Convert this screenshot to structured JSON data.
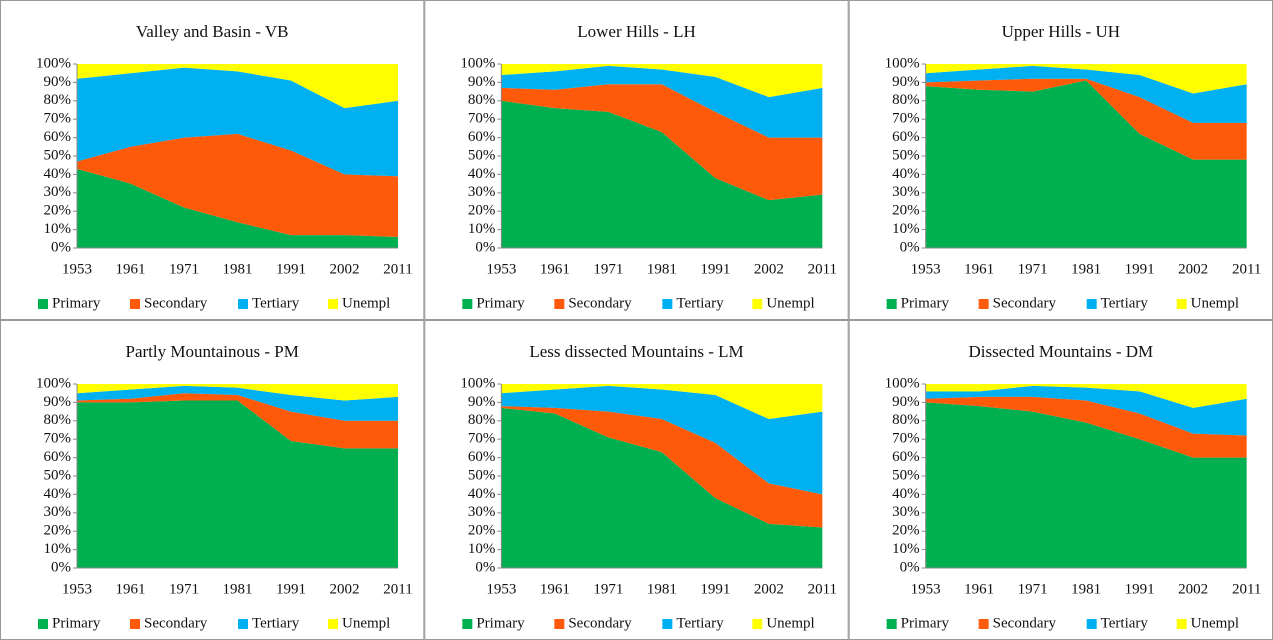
{
  "chart_data": [
    {
      "type": "area",
      "title": "Valley and Basin - VB",
      "categories": [
        "1953",
        "1961",
        "1971",
        "1981",
        "1991",
        "2002",
        "2011"
      ],
      "series": [
        {
          "name": "Primary",
          "color": "#00b050",
          "values": [
            43,
            35,
            22,
            14,
            7,
            7,
            6
          ]
        },
        {
          "name": "Secondary",
          "color": "#ff5a0a",
          "values": [
            4,
            20,
            38,
            48,
            46,
            33,
            33
          ]
        },
        {
          "name": "Tertiary",
          "color": "#00b0f0",
          "values": [
            45,
            40,
            38,
            34,
            38,
            36,
            41
          ]
        },
        {
          "name": "Unempl",
          "color": "#ffff00",
          "values": [
            8,
            5,
            2,
            4,
            9,
            24,
            20
          ]
        }
      ],
      "ylim": [
        0,
        100
      ],
      "yticks": [
        {
          "value": 0,
          "label": "0%"
        },
        {
          "value": 10,
          "label": "10%"
        },
        {
          "value": 20,
          "label": "20%"
        },
        {
          "value": 30,
          "label": "30%"
        },
        {
          "value": 40,
          "label": "40%"
        },
        {
          "value": 50,
          "label": "50%"
        },
        {
          "value": 60,
          "label": "60%"
        },
        {
          "value": 70,
          "label": "70%"
        },
        {
          "value": 80,
          "label": "80%"
        },
        {
          "value": 90,
          "label": "90%"
        },
        {
          "value": 100,
          "label": "100%"
        }
      ]
    },
    {
      "type": "area",
      "title": "Lower Hills - LH",
      "categories": [
        "1953",
        "1961",
        "1971",
        "1981",
        "1991",
        "2002",
        "2011"
      ],
      "series": [
        {
          "name": "Primary",
          "color": "#00b050",
          "values": [
            80,
            76,
            74,
            63,
            38,
            26,
            29
          ]
        },
        {
          "name": "Secondary",
          "color": "#ff5a0a",
          "values": [
            7,
            10,
            15,
            26,
            36,
            34,
            31
          ]
        },
        {
          "name": "Tertiary",
          "color": "#00b0f0",
          "values": [
            7,
            10,
            10,
            8,
            19,
            22,
            27
          ]
        },
        {
          "name": "Unempl",
          "color": "#ffff00",
          "values": [
            6,
            4,
            1,
            3,
            7,
            18,
            13
          ]
        }
      ],
      "ylim": [
        0,
        100
      ],
      "yticks": [
        {
          "value": 0,
          "label": "0%"
        },
        {
          "value": 10,
          "label": "10%"
        },
        {
          "value": 20,
          "label": "20%"
        },
        {
          "value": 30,
          "label": "30%"
        },
        {
          "value": 40,
          "label": "40%"
        },
        {
          "value": 50,
          "label": "50%"
        },
        {
          "value": 60,
          "label": "60%"
        },
        {
          "value": 70,
          "label": "70%"
        },
        {
          "value": 80,
          "label": "80%"
        },
        {
          "value": 90,
          "label": "90%"
        },
        {
          "value": 100,
          "label": "100%"
        }
      ]
    },
    {
      "type": "area",
      "title": "Upper Hills - UH",
      "categories": [
        "1953",
        "1961",
        "1971",
        "1981",
        "1991",
        "2002",
        "2011"
      ],
      "series": [
        {
          "name": "Primary",
          "color": "#00b050",
          "values": [
            88,
            86,
            85,
            91,
            62,
            48,
            48
          ]
        },
        {
          "name": "Secondary",
          "color": "#ff5a0a",
          "values": [
            2,
            5,
            7,
            1,
            20,
            20,
            20
          ]
        },
        {
          "name": "Tertiary",
          "color": "#00b0f0",
          "values": [
            5,
            6,
            7,
            5,
            12,
            16,
            21
          ]
        },
        {
          "name": "Unempl",
          "color": "#ffff00",
          "values": [
            5,
            3,
            1,
            3,
            6,
            16,
            11
          ]
        }
      ],
      "ylim": [
        0,
        100
      ],
      "yticks": [
        {
          "value": 0,
          "label": "0%"
        },
        {
          "value": 10,
          "label": "10%"
        },
        {
          "value": 20,
          "label": "20%"
        },
        {
          "value": 30,
          "label": "30%"
        },
        {
          "value": 40,
          "label": "40%"
        },
        {
          "value": 50,
          "label": "50%"
        },
        {
          "value": 60,
          "label": "60%"
        },
        {
          "value": 70,
          "label": "70%"
        },
        {
          "value": 80,
          "label": "80%"
        },
        {
          "value": 90,
          "label": "90%"
        },
        {
          "value": 100,
          "label": "100%"
        }
      ]
    },
    {
      "type": "area",
      "title": "Partly Mountainous - PM",
      "categories": [
        "1953",
        "1961",
        "1971",
        "1981",
        "1991",
        "2002",
        "2011"
      ],
      "series": [
        {
          "name": "Primary",
          "color": "#00b050",
          "values": [
            90,
            90,
            91,
            91,
            69,
            65,
            65
          ]
        },
        {
          "name": "Secondary",
          "color": "#ff5a0a",
          "values": [
            1,
            2,
            4,
            3,
            16,
            15,
            15
          ]
        },
        {
          "name": "Tertiary",
          "color": "#00b0f0",
          "values": [
            4,
            5,
            4,
            4,
            9,
            11,
            13
          ]
        },
        {
          "name": "Unempl",
          "color": "#ffff00",
          "values": [
            5,
            3,
            1,
            2,
            6,
            9,
            7
          ]
        }
      ],
      "ylim": [
        0,
        100
      ],
      "yticks": [
        {
          "value": 0,
          "label": "0%"
        },
        {
          "value": 10,
          "label": "10%"
        },
        {
          "value": 20,
          "label": "20%"
        },
        {
          "value": 30,
          "label": "30%"
        },
        {
          "value": 40,
          "label": "40%"
        },
        {
          "value": 50,
          "label": "50%"
        },
        {
          "value": 60,
          "label": "60%"
        },
        {
          "value": 70,
          "label": "70%"
        },
        {
          "value": 80,
          "label": "80%"
        },
        {
          "value": 90,
          "label": "90%"
        },
        {
          "value": 100,
          "label": "100%"
        }
      ]
    },
    {
      "type": "area",
      "title": "Less dissected Mountains - LM",
      "categories": [
        "1953",
        "1961",
        "1971",
        "1981",
        "1991",
        "2002",
        "2011"
      ],
      "series": [
        {
          "name": "Primary",
          "color": "#00b050",
          "values": [
            87,
            84,
            71,
            63,
            38,
            24,
            22
          ]
        },
        {
          "name": "Secondary",
          "color": "#ff5a0a",
          "values": [
            1,
            3,
            14,
            18,
            30,
            22,
            18
          ]
        },
        {
          "name": "Tertiary",
          "color": "#00b0f0",
          "values": [
            7,
            10,
            14,
            16,
            26,
            35,
            45
          ]
        },
        {
          "name": "Unempl",
          "color": "#ffff00",
          "values": [
            5,
            3,
            1,
            3,
            6,
            19,
            15
          ]
        }
      ],
      "ylim": [
        0,
        100
      ],
      "yticks": [
        {
          "value": 0,
          "label": "0%"
        },
        {
          "value": 10,
          "label": "10%"
        },
        {
          "value": 20,
          "label": "20%"
        },
        {
          "value": 30,
          "label": "30%"
        },
        {
          "value": 40,
          "label": "40%"
        },
        {
          "value": 50,
          "label": "50%"
        },
        {
          "value": 60,
          "label": "60%"
        },
        {
          "value": 70,
          "label": "70%"
        },
        {
          "value": 80,
          "label": "80%"
        },
        {
          "value": 90,
          "label": "90%"
        },
        {
          "value": 100,
          "label": "100%"
        }
      ]
    },
    {
      "type": "area",
      "title": "Dissected Mountains - DM",
      "categories": [
        "1953",
        "1961",
        "1971",
        "1981",
        "1991",
        "2002",
        "2011"
      ],
      "series": [
        {
          "name": "Primary",
          "color": "#00b050",
          "values": [
            90,
            88,
            85,
            79,
            70,
            60,
            60
          ]
        },
        {
          "name": "Secondary",
          "color": "#ff5a0a",
          "values": [
            2,
            5,
            8,
            12,
            14,
            13,
            12
          ]
        },
        {
          "name": "Tertiary",
          "color": "#00b0f0",
          "values": [
            4,
            3,
            6,
            7,
            12,
            14,
            20
          ]
        },
        {
          "name": "Unempl",
          "color": "#ffff00",
          "values": [
            4,
            4,
            1,
            2,
            4,
            13,
            8
          ]
        }
      ],
      "ylim": [
        0,
        100
      ],
      "yticks": [
        {
          "value": 0,
          "label": "0%"
        },
        {
          "value": 10,
          "label": "10%"
        },
        {
          "value": 20,
          "label": "20%"
        },
        {
          "value": 30,
          "label": "30%"
        },
        {
          "value": 40,
          "label": "40%"
        },
        {
          "value": 50,
          "label": "50%"
        },
        {
          "value": 60,
          "label": "60%"
        },
        {
          "value": 70,
          "label": "70%"
        },
        {
          "value": 80,
          "label": "80%"
        },
        {
          "value": 90,
          "label": "90%"
        },
        {
          "value": 100,
          "label": "100%"
        }
      ]
    }
  ]
}
